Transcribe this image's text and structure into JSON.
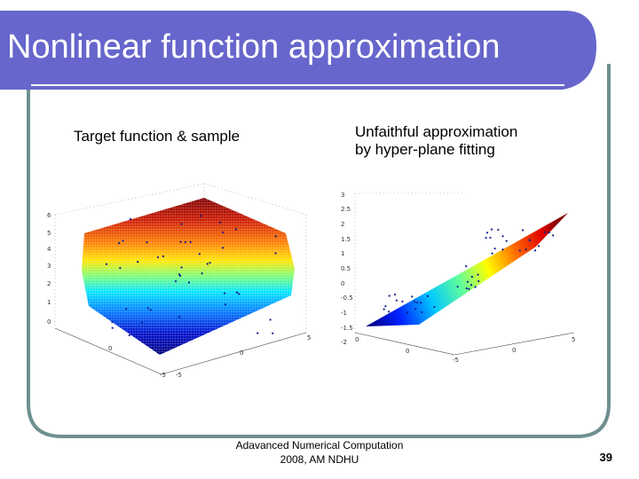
{
  "slide": {
    "title": "Nonlinear function approximation",
    "colors": {
      "theme": "#6666cc",
      "frame": "#6f8f8f"
    }
  },
  "left_panel": {
    "caption": "Target function & sample",
    "z_ticks": [
      "0",
      "1",
      "2",
      "3",
      "4",
      "5",
      "6"
    ],
    "x_ticks": [
      "0",
      "5"
    ],
    "y_ticks": [
      "0",
      "-5",
      "-5"
    ]
  },
  "right_panel": {
    "caption_line1": "Unfaithful approximation",
    "caption_line2": "by hyper-plane fitting",
    "z_ticks": [
      "3",
      "2.5",
      "2",
      "1.5",
      "1",
      "0.5",
      "0",
      "-0.5",
      "-1",
      "-1.5",
      "-2"
    ],
    "x_ticks": [
      "0",
      "5"
    ],
    "y_ticks": [
      "0",
      "-5",
      "0"
    ]
  },
  "footer": {
    "line1": "Adavanced Numerical Computation",
    "line2": "2008, AM NDHU"
  },
  "page_number": "39"
}
